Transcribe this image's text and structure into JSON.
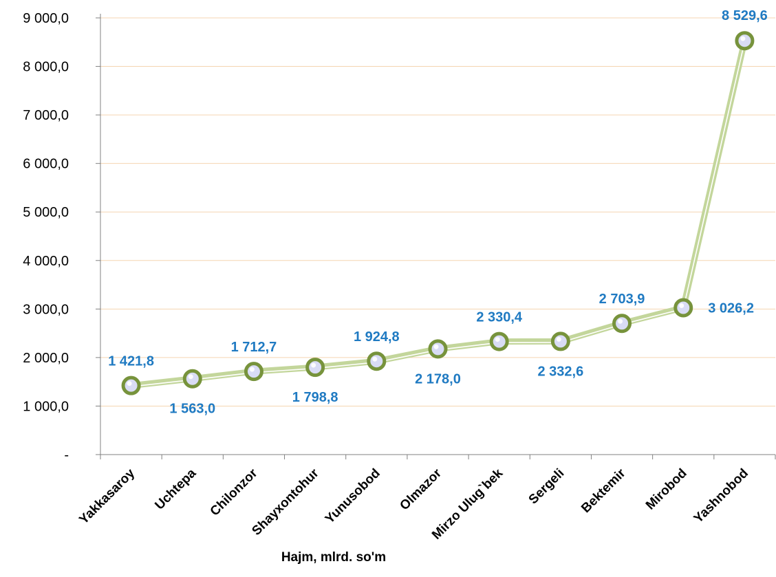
{
  "chart_data": {
    "type": "line",
    "categories": [
      "Yakkasaroy",
      "Uchtepa",
      "Chilonzor",
      "Shayxontohur",
      "Yunusobod",
      "Olmazor",
      "Mirzo Ulug`bek",
      "Sergeli",
      "Bektemir",
      "Mirobod",
      "Yashnobod"
    ],
    "values": [
      1421.8,
      1563.0,
      1712.7,
      1798.8,
      1924.8,
      2178.0,
      2330.4,
      2332.6,
      2703.9,
      3026.2,
      8529.6
    ],
    "data_labels": [
      "1 421,8",
      "1 563,0",
      "1 712,7",
      "1 798,8",
      "1 924,8",
      "2 178,0",
      "2 330,4",
      "2 332,6",
      "2 703,9",
      "3 026,2",
      "8 529,6"
    ],
    "y_tick_labels": [
      "-",
      "1 000,0",
      "2 000,0",
      "3 000,0",
      "4 000,0",
      "5 000,0",
      "6 000,0",
      "7 000,0",
      "8 000,0",
      "9 000,0"
    ],
    "ylim": [
      0,
      9000
    ],
    "xlabel": "Hajm, mlrd. so'm",
    "ylabel": "",
    "grid": true,
    "colors": {
      "line": "#c3d69b",
      "line_inner": "#ffffff",
      "marker_ring": "#77933c",
      "marker_fill": "#d9dcf5",
      "label": "#1f7ac2",
      "grid": "#f5d5b0",
      "axis": "#808080"
    }
  }
}
